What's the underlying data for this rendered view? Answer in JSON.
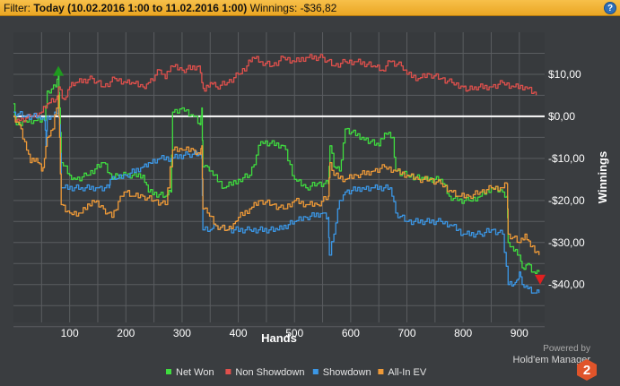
{
  "header": {
    "filter_label": "Filter:",
    "filter_value": "Today (10.02.2016 1:00 to 11.02.2016 1:00)",
    "winnings_label": "Winnings:",
    "winnings_value": "-$36,82",
    "help_label": "?"
  },
  "brand": {
    "powered": "Powered by",
    "name": "Hold'em Manager",
    "logo_number": "2"
  },
  "colors": {
    "background": "#3a3d40",
    "plot_background": "#373a3d",
    "grid": "#5a5d60",
    "zero_line": "#ffffff",
    "net_won": "#3fdc3f",
    "non_showdown": "#e0504c",
    "showdown": "#3b97e6",
    "allin_ev": "#ef9a38",
    "header": "#f3b53a",
    "logo": "#e0542a"
  },
  "chart_data": {
    "type": "line",
    "xlabel": "Hands",
    "ylabel": "Winnings",
    "xlim": [
      0,
      945
    ],
    "ylim": [
      -49,
      20
    ],
    "xticks": [
      100,
      200,
      300,
      400,
      500,
      600,
      700,
      800,
      900
    ],
    "xtick_labels": [
      "100",
      "200",
      "300",
      "400",
      "500",
      "600",
      "700",
      "800",
      "900"
    ],
    "yticks": [
      10,
      0,
      -10,
      -20,
      -30,
      -40
    ],
    "ytick_labels": [
      "$10,00",
      "$0,00",
      "-$10,00",
      "-$20,00",
      "-$30,00",
      "-$40,00"
    ],
    "grid": true,
    "legend_position": "bottom",
    "markers": [
      {
        "type": "max",
        "series": "Net Won",
        "x": 80,
        "y": 10.5,
        "shape": "triangle-up",
        "color": "#1f9a1f"
      },
      {
        "type": "min",
        "series": "Net Won",
        "x": 937,
        "y": -38.5,
        "shape": "triangle-down",
        "color": "#e02020"
      }
    ],
    "series": [
      {
        "name": "Net Won",
        "color": "#3fdc3f",
        "points": [
          [
            0,
            3
          ],
          [
            5,
            -2
          ],
          [
            20,
            -1
          ],
          [
            40,
            -1
          ],
          [
            55,
            -1
          ],
          [
            60,
            6
          ],
          [
            75,
            7
          ],
          [
            80,
            10
          ],
          [
            82,
            2
          ],
          [
            85,
            -11
          ],
          [
            100,
            -14
          ],
          [
            110,
            -15
          ],
          [
            130,
            -14
          ],
          [
            160,
            -11
          ],
          [
            175,
            -15
          ],
          [
            185,
            -14
          ],
          [
            200,
            -14
          ],
          [
            230,
            -14
          ],
          [
            240,
            -18
          ],
          [
            270,
            -19
          ],
          [
            280,
            -18
          ],
          [
            283,
            1
          ],
          [
            300,
            2
          ],
          [
            320,
            0
          ],
          [
            332,
            -2
          ],
          [
            335,
            2
          ],
          [
            337,
            -12
          ],
          [
            345,
            -12
          ],
          [
            355,
            -14
          ],
          [
            375,
            -17
          ],
          [
            400,
            -15
          ],
          [
            420,
            -14
          ],
          [
            440,
            -6
          ],
          [
            480,
            -7
          ],
          [
            500,
            -15
          ],
          [
            520,
            -17
          ],
          [
            540,
            -16
          ],
          [
            560,
            -16
          ],
          [
            563,
            -7
          ],
          [
            570,
            -12
          ],
          [
            580,
            -13
          ],
          [
            590,
            -3
          ],
          [
            620,
            -5
          ],
          [
            650,
            -7
          ],
          [
            660,
            -4
          ],
          [
            675,
            -5
          ],
          [
            680,
            -13
          ],
          [
            700,
            -14
          ],
          [
            730,
            -15
          ],
          [
            760,
            -15
          ],
          [
            775,
            -19
          ],
          [
            790,
            -20
          ],
          [
            810,
            -20
          ],
          [
            830,
            -19
          ],
          [
            850,
            -17
          ],
          [
            870,
            -18
          ],
          [
            878,
            -19
          ],
          [
            880,
            -30
          ],
          [
            890,
            -32
          ],
          [
            900,
            -33
          ],
          [
            905,
            -36
          ],
          [
            915,
            -35
          ],
          [
            925,
            -37
          ],
          [
            935,
            -37
          ]
        ]
      },
      {
        "name": "Non Showdown",
        "color": "#e0504c",
        "points": [
          [
            0,
            0
          ],
          [
            10,
            -1
          ],
          [
            30,
            0
          ],
          [
            50,
            1
          ],
          [
            60,
            3
          ],
          [
            75,
            4
          ],
          [
            80,
            7
          ],
          [
            90,
            4
          ],
          [
            100,
            7
          ],
          [
            110,
            8
          ],
          [
            140,
            9
          ],
          [
            160,
            7
          ],
          [
            180,
            9
          ],
          [
            200,
            8
          ],
          [
            210,
            8
          ],
          [
            230,
            7
          ],
          [
            240,
            8
          ],
          [
            260,
            11
          ],
          [
            270,
            9
          ],
          [
            280,
            12
          ],
          [
            300,
            11
          ],
          [
            330,
            12
          ],
          [
            335,
            8
          ],
          [
            340,
            6
          ],
          [
            350,
            8
          ],
          [
            360,
            7
          ],
          [
            380,
            8
          ],
          [
            400,
            10
          ],
          [
            415,
            12
          ],
          [
            425,
            14
          ],
          [
            440,
            13
          ],
          [
            460,
            12
          ],
          [
            480,
            14
          ],
          [
            500,
            13
          ],
          [
            520,
            14
          ],
          [
            550,
            14
          ],
          [
            570,
            12
          ],
          [
            590,
            13
          ],
          [
            610,
            13
          ],
          [
            640,
            12
          ],
          [
            655,
            11
          ],
          [
            670,
            13
          ],
          [
            690,
            12
          ],
          [
            700,
            10
          ],
          [
            720,
            9
          ],
          [
            740,
            10
          ],
          [
            760,
            9
          ],
          [
            780,
            8
          ],
          [
            800,
            7
          ],
          [
            805,
            6
          ],
          [
            820,
            7
          ],
          [
            850,
            7
          ],
          [
            870,
            8
          ],
          [
            890,
            7
          ],
          [
            910,
            7
          ],
          [
            930,
            5
          ]
        ]
      },
      {
        "name": "Showdown",
        "color": "#3b97e6",
        "points": [
          [
            0,
            1
          ],
          [
            20,
            0
          ],
          [
            45,
            0
          ],
          [
            55,
            -1
          ],
          [
            58,
            -7
          ],
          [
            60,
            0
          ],
          [
            70,
            0
          ],
          [
            80,
            2
          ],
          [
            82,
            -2
          ],
          [
            85,
            -17
          ],
          [
            120,
            -17
          ],
          [
            150,
            -17
          ],
          [
            170,
            -17
          ],
          [
            172,
            -15
          ],
          [
            180,
            -15
          ],
          [
            200,
            -14
          ],
          [
            230,
            -12
          ],
          [
            240,
            -11
          ],
          [
            260,
            -10
          ],
          [
            280,
            -10
          ],
          [
            310,
            -9
          ],
          [
            330,
            -9
          ],
          [
            335,
            -10
          ],
          [
            337,
            -27
          ],
          [
            350,
            -27
          ],
          [
            360,
            -26
          ],
          [
            380,
            -27
          ],
          [
            420,
            -27
          ],
          [
            470,
            -27
          ],
          [
            500,
            -25
          ],
          [
            520,
            -24
          ],
          [
            550,
            -23
          ],
          [
            560,
            -24
          ],
          [
            562,
            -33
          ],
          [
            570,
            -28
          ],
          [
            580,
            -20
          ],
          [
            590,
            -18
          ],
          [
            620,
            -17
          ],
          [
            640,
            -17
          ],
          [
            670,
            -17
          ],
          [
            680,
            -23
          ],
          [
            700,
            -25
          ],
          [
            760,
            -25
          ],
          [
            780,
            -26
          ],
          [
            800,
            -28
          ],
          [
            830,
            -28
          ],
          [
            850,
            -27
          ],
          [
            870,
            -28
          ],
          [
            880,
            -40
          ],
          [
            890,
            -40
          ],
          [
            895,
            -39
          ],
          [
            900,
            -37
          ],
          [
            905,
            -40
          ],
          [
            915,
            -41
          ],
          [
            925,
            -42
          ],
          [
            935,
            -42
          ]
        ]
      },
      {
        "name": "All-In EV",
        "color": "#ef9a38",
        "points": [
          [
            0,
            0
          ],
          [
            10,
            -2
          ],
          [
            20,
            -6
          ],
          [
            30,
            -11
          ],
          [
            40,
            -10
          ],
          [
            50,
            -13
          ],
          [
            55,
            -10
          ],
          [
            60,
            -5
          ],
          [
            70,
            -3
          ],
          [
            80,
            5
          ],
          [
            82,
            -5
          ],
          [
            85,
            -21
          ],
          [
            100,
            -23
          ],
          [
            120,
            -23
          ],
          [
            140,
            -20
          ],
          [
            160,
            -22
          ],
          [
            175,
            -24
          ],
          [
            190,
            -19
          ],
          [
            200,
            -18
          ],
          [
            210,
            -19
          ],
          [
            230,
            -19
          ],
          [
            250,
            -20
          ],
          [
            270,
            -21
          ],
          [
            283,
            -8
          ],
          [
            300,
            -8
          ],
          [
            320,
            -8
          ],
          [
            332,
            -9
          ],
          [
            335,
            -7
          ],
          [
            337,
            -22
          ],
          [
            345,
            -23
          ],
          [
            360,
            -26
          ],
          [
            380,
            -27
          ],
          [
            395,
            -25
          ],
          [
            400,
            -24
          ],
          [
            420,
            -22
          ],
          [
            440,
            -20
          ],
          [
            460,
            -21
          ],
          [
            480,
            -22
          ],
          [
            500,
            -20
          ],
          [
            520,
            -21
          ],
          [
            540,
            -21
          ],
          [
            560,
            -19
          ],
          [
            563,
            -11
          ],
          [
            570,
            -14
          ],
          [
            590,
            -15
          ],
          [
            610,
            -14
          ],
          [
            640,
            -13
          ],
          [
            660,
            -12
          ],
          [
            680,
            -13
          ],
          [
            700,
            -14
          ],
          [
            720,
            -15
          ],
          [
            740,
            -15
          ],
          [
            760,
            -16
          ],
          [
            780,
            -18
          ],
          [
            790,
            -19
          ],
          [
            810,
            -19
          ],
          [
            830,
            -18
          ],
          [
            850,
            -17
          ],
          [
            870,
            -17
          ],
          [
            878,
            -16
          ],
          [
            880,
            -28
          ],
          [
            900,
            -30
          ],
          [
            910,
            -28
          ],
          [
            920,
            -31
          ],
          [
            935,
            -33
          ]
        ]
      }
    ]
  }
}
